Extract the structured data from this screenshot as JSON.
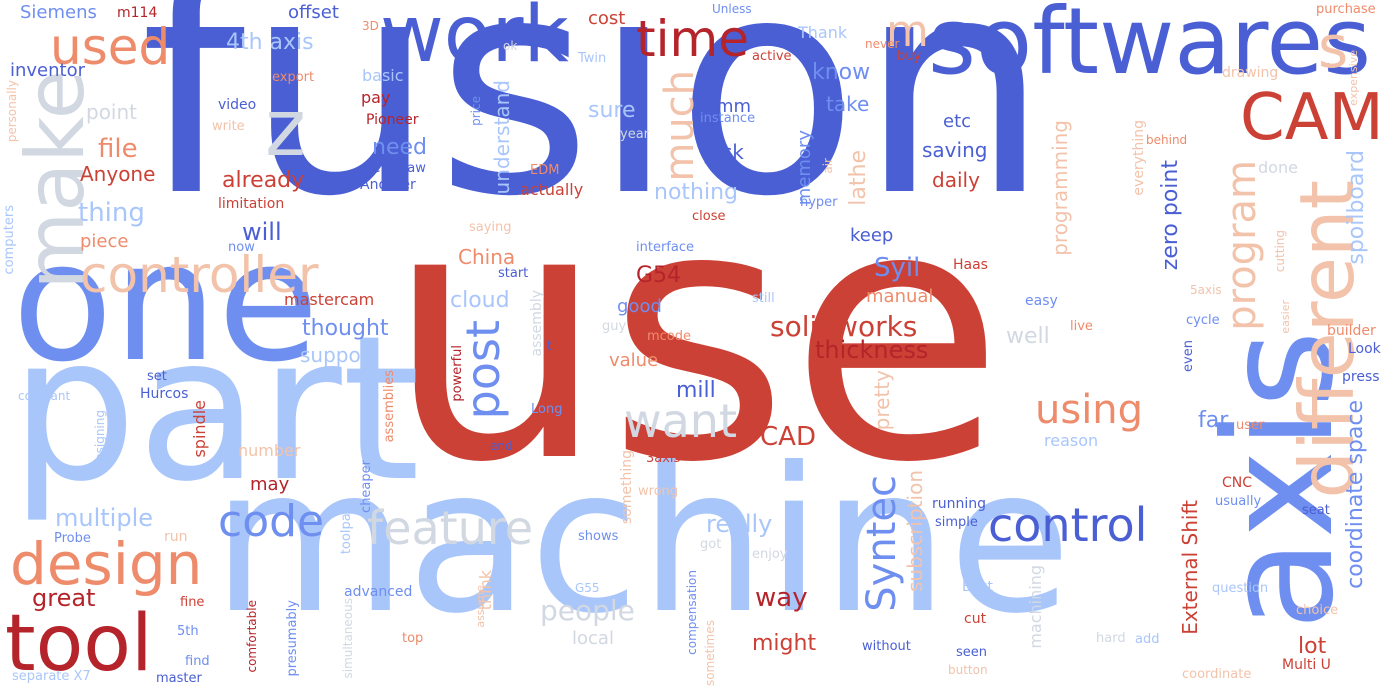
{
  "palette": {
    "dark_blue": "#4a5fd3",
    "mid_blue": "#6f8ff0",
    "light_blue": "#a9c6fb",
    "pale_gray": "#d2d8e2",
    "salmon": "#ee8b6b",
    "pale_salmon": "#f2c3aa",
    "red": "#cc4136",
    "dark_red": "#b4242a"
  },
  "words": [
    {
      "text": "fusion",
      "color": "dark_blue"
    },
    {
      "text": "use",
      "color": "red"
    },
    {
      "text": "machine",
      "color": "light_blue"
    },
    {
      "text": "part",
      "color": "light_blue"
    },
    {
      "text": "one",
      "color": "mid_blue"
    },
    {
      "text": "axis",
      "color": "mid_blue"
    },
    {
      "text": "softwares",
      "color": "dark_blue"
    },
    {
      "text": "work",
      "color": "dark_blue"
    },
    {
      "text": "make",
      "color": "pale_gray"
    },
    {
      "text": "different",
      "color": "pale_salmon"
    },
    {
      "text": "CAM",
      "color": "red"
    },
    {
      "text": "tool",
      "color": "dark_red"
    },
    {
      "text": "design",
      "color": "salmon"
    },
    {
      "text": "controller",
      "color": "pale_salmon"
    },
    {
      "text": "time",
      "color": "dark_red"
    },
    {
      "text": "used",
      "color": "salmon"
    },
    {
      "text": "z",
      "color": "pale_gray"
    },
    {
      "text": "s",
      "color": "pale_salmon"
    },
    {
      "text": "m",
      "color": "pale_salmon"
    },
    {
      "text": "feature",
      "color": "pale_gray"
    },
    {
      "text": "control",
      "color": "dark_blue"
    },
    {
      "text": "code",
      "color": "mid_blue"
    },
    {
      "text": "want",
      "color": "pale_gray"
    },
    {
      "text": "post",
      "color": "mid_blue"
    },
    {
      "text": "using",
      "color": "salmon"
    },
    {
      "text": "program",
      "color": "pale_salmon"
    },
    {
      "text": "Syntec",
      "color": "mid_blue"
    },
    {
      "text": "much",
      "color": "pale_salmon"
    },
    {
      "text": "solidworks",
      "color": "red"
    },
    {
      "text": "thickness",
      "color": "dark_red"
    },
    {
      "text": "coordinate space",
      "color": "mid_blue"
    },
    {
      "text": "spoilboard",
      "color": "light_blue"
    },
    {
      "text": "zero point",
      "color": "dark_blue"
    },
    {
      "text": "great",
      "color": "dark_red"
    },
    {
      "text": "multiple",
      "color": "light_blue"
    },
    {
      "text": "file",
      "color": "salmon"
    },
    {
      "text": "thing",
      "color": "light_blue"
    },
    {
      "text": "will",
      "color": "dark_blue"
    },
    {
      "text": "already",
      "color": "red"
    },
    {
      "text": "need",
      "color": "mid_blue"
    },
    {
      "text": "Anyone",
      "color": "red"
    },
    {
      "text": "CAD",
      "color": "red"
    },
    {
      "text": "people",
      "color": "pale_gray"
    },
    {
      "text": "way",
      "color": "dark_red"
    },
    {
      "text": "might",
      "color": "red"
    },
    {
      "text": "really",
      "color": "light_blue"
    },
    {
      "text": "lot",
      "color": "red"
    },
    {
      "text": "far",
      "color": "mid_blue"
    },
    {
      "text": "External Shift",
      "color": "red"
    },
    {
      "text": "subscription",
      "color": "pale_salmon"
    },
    {
      "text": "pretty",
      "color": "pale_salmon"
    },
    {
      "text": "Syil",
      "color": "mid_blue"
    },
    {
      "text": "manual",
      "color": "salmon"
    },
    {
      "text": "mill",
      "color": "dark_blue"
    },
    {
      "text": "value",
      "color": "salmon"
    },
    {
      "text": "cloud",
      "color": "light_blue"
    },
    {
      "text": "G54",
      "color": "dark_red"
    },
    {
      "text": "good",
      "color": "mid_blue"
    },
    {
      "text": "thought",
      "color": "mid_blue"
    },
    {
      "text": "support",
      "color": "light_blue"
    },
    {
      "text": "mastercam",
      "color": "red"
    },
    {
      "text": "China",
      "color": "salmon"
    },
    {
      "text": "piece",
      "color": "salmon"
    },
    {
      "text": "nothing",
      "color": "light_blue"
    },
    {
      "text": "know",
      "color": "mid_blue"
    },
    {
      "text": "take",
      "color": "mid_blue"
    },
    {
      "text": "etc",
      "color": "dark_blue"
    },
    {
      "text": "saving",
      "color": "dark_blue"
    },
    {
      "text": "daily",
      "color": "red"
    },
    {
      "text": "pick",
      "color": "dark_blue"
    },
    {
      "text": "keep",
      "color": "dark_blue"
    },
    {
      "text": "mm",
      "color": "dark_blue"
    },
    {
      "text": "sure",
      "color": "light_blue"
    },
    {
      "text": "lathe",
      "color": "pale_salmon"
    },
    {
      "text": "memory",
      "color": "mid_blue"
    },
    {
      "text": "programming",
      "color": "pale_salmon"
    },
    {
      "text": "understand",
      "color": "light_blue"
    },
    {
      "text": "actually",
      "color": "red"
    },
    {
      "text": "cost",
      "color": "red"
    },
    {
      "text": "offset",
      "color": "dark_blue"
    },
    {
      "text": "4th axis",
      "color": "light_blue"
    },
    {
      "text": "inventor",
      "color": "dark_blue"
    },
    {
      "text": "Siemens",
      "color": "mid_blue"
    },
    {
      "text": "m114",
      "color": "dark_red"
    },
    {
      "text": "3D",
      "color": "salmon"
    },
    {
      "text": "basic",
      "color": "light_blue"
    },
    {
      "text": "pay",
      "color": "dark_red"
    },
    {
      "text": "point",
      "color": "pale_gray"
    },
    {
      "text": "video",
      "color": "dark_blue"
    },
    {
      "text": "write",
      "color": "pale_salmon"
    },
    {
      "text": "Pioneer",
      "color": "dark_red"
    },
    {
      "text": "limitation",
      "color": "red"
    },
    {
      "text": "Renishaw",
      "color": "dark_blue"
    },
    {
      "text": "Another",
      "color": "dark_blue"
    },
    {
      "text": "EDM",
      "color": "salmon"
    },
    {
      "text": "Thank",
      "color": "light_blue"
    },
    {
      "text": "Twin",
      "color": "light_blue"
    },
    {
      "text": "active",
      "color": "red"
    },
    {
      "text": "Unless",
      "color": "mid_blue"
    },
    {
      "text": "never",
      "color": "salmon"
    },
    {
      "text": "buy",
      "color": "red"
    },
    {
      "text": "purchase",
      "color": "salmon"
    },
    {
      "text": "expensive",
      "color": "pale_salmon"
    },
    {
      "text": "drawing",
      "color": "pale_salmon"
    },
    {
      "text": "export",
      "color": "salmon"
    },
    {
      "text": "ok",
      "color": "pale_gray"
    },
    {
      "text": "instance",
      "color": "mid_blue"
    },
    {
      "text": "year",
      "color": "pale_gray"
    },
    {
      "text": "price",
      "color": "mid_blue"
    },
    {
      "text": "air",
      "color": "pale_salmon"
    },
    {
      "text": "hyper",
      "color": "mid_blue"
    },
    {
      "text": "close",
      "color": "red"
    },
    {
      "text": "interface",
      "color": "mid_blue"
    },
    {
      "text": "saying",
      "color": "pale_salmon"
    },
    {
      "text": "now",
      "color": "mid_blue"
    },
    {
      "text": "start",
      "color": "dark_blue"
    },
    {
      "text": "assembly",
      "color": "pale_gray"
    },
    {
      "text": "still",
      "color": "light_blue"
    },
    {
      "text": "guy",
      "color": "pale_gray"
    },
    {
      "text": "mcode",
      "color": "salmon"
    },
    {
      "text": "t",
      "color": "dark_blue"
    },
    {
      "text": "Long",
      "color": "mid_blue"
    },
    {
      "text": "end",
      "color": "dark_blue"
    },
    {
      "text": "powerful",
      "color": "dark_red"
    },
    {
      "text": "assemblies",
      "color": "salmon"
    },
    {
      "text": "cheaper",
      "color": "mid_blue"
    },
    {
      "text": "toolpath",
      "color": "light_blue"
    },
    {
      "text": "3axis",
      "color": "red"
    },
    {
      "text": "wrong",
      "color": "pale_salmon"
    },
    {
      "text": "something",
      "color": "pale_salmon"
    },
    {
      "text": "shows",
      "color": "mid_blue"
    },
    {
      "text": "got",
      "color": "pale_gray"
    },
    {
      "text": "enjoy",
      "color": "pale_gray"
    },
    {
      "text": "G55",
      "color": "light_blue"
    },
    {
      "text": "assume",
      "color": "pale_salmon"
    },
    {
      "text": "think",
      "color": "pale_salmon"
    },
    {
      "text": "compensation",
      "color": "mid_blue"
    },
    {
      "text": "sometimes",
      "color": "pale_salmon"
    },
    {
      "text": "local",
      "color": "pale_gray"
    },
    {
      "text": "top",
      "color": "salmon"
    },
    {
      "text": "advanced",
      "color": "mid_blue"
    },
    {
      "text": "presumably",
      "color": "mid_blue"
    },
    {
      "text": "simultaneous",
      "color": "pale_gray"
    },
    {
      "text": "comfortable",
      "color": "dark_red"
    },
    {
      "text": "master",
      "color": "dark_blue"
    },
    {
      "text": "find",
      "color": "mid_blue"
    },
    {
      "text": "5th",
      "color": "mid_blue"
    },
    {
      "text": "fine",
      "color": "red"
    },
    {
      "text": "separate X7",
      "color": "light_blue"
    },
    {
      "text": "run",
      "color": "pale_salmon"
    },
    {
      "text": "Probe",
      "color": "mid_blue"
    },
    {
      "text": "designing",
      "color": "light_blue"
    },
    {
      "text": "constant",
      "color": "light_blue"
    },
    {
      "text": "computers",
      "color": "light_blue"
    },
    {
      "text": "set",
      "color": "dark_blue"
    },
    {
      "text": "Hurcos",
      "color": "dark_blue"
    },
    {
      "text": "spindle",
      "color": "red"
    },
    {
      "text": "number",
      "color": "pale_salmon"
    },
    {
      "text": "may",
      "color": "dark_red"
    },
    {
      "text": "personally",
      "color": "pale_salmon"
    },
    {
      "text": "well",
      "color": "pale_gray"
    },
    {
      "text": "reason",
      "color": "light_blue"
    },
    {
      "text": "easy",
      "color": "mid_blue"
    },
    {
      "text": "live",
      "color": "salmon"
    },
    {
      "text": "Haas",
      "color": "red"
    },
    {
      "text": "cutting",
      "color": "pale_salmon"
    },
    {
      "text": "5axis",
      "color": "pale_salmon"
    },
    {
      "text": "easier",
      "color": "pale_salmon"
    },
    {
      "text": "cycle",
      "color": "mid_blue"
    },
    {
      "text": "builder",
      "color": "salmon"
    },
    {
      "text": "Look",
      "color": "dark_blue"
    },
    {
      "text": "press",
      "color": "dark_blue"
    },
    {
      "text": "user",
      "color": "salmon"
    },
    {
      "text": "usually",
      "color": "mid_blue"
    },
    {
      "text": "seat",
      "color": "dark_blue"
    },
    {
      "text": "CNC",
      "color": "red"
    },
    {
      "text": "running",
      "color": "dark_blue"
    },
    {
      "text": "simple",
      "color": "dark_blue"
    },
    {
      "text": "even",
      "color": "dark_blue"
    },
    {
      "text": "machining",
      "color": "pale_gray"
    },
    {
      "text": "question",
      "color": "light_blue"
    },
    {
      "text": "Best",
      "color": "light_blue"
    },
    {
      "text": "cut",
      "color": "red"
    },
    {
      "text": "seen",
      "color": "dark_blue"
    },
    {
      "text": "add",
      "color": "light_blue"
    },
    {
      "text": "hard",
      "color": "pale_gray"
    },
    {
      "text": "without",
      "color": "dark_blue"
    },
    {
      "text": "button",
      "color": "pale_salmon"
    },
    {
      "text": "coordinate",
      "color": "pale_salmon"
    },
    {
      "text": "Multi U",
      "color": "red"
    },
    {
      "text": "choice",
      "color": "pale_salmon"
    },
    {
      "text": "done",
      "color": "pale_gray"
    },
    {
      "text": "behind",
      "color": "salmon"
    },
    {
      "text": "everything",
      "color": "pale_salmon"
    }
  ]
}
